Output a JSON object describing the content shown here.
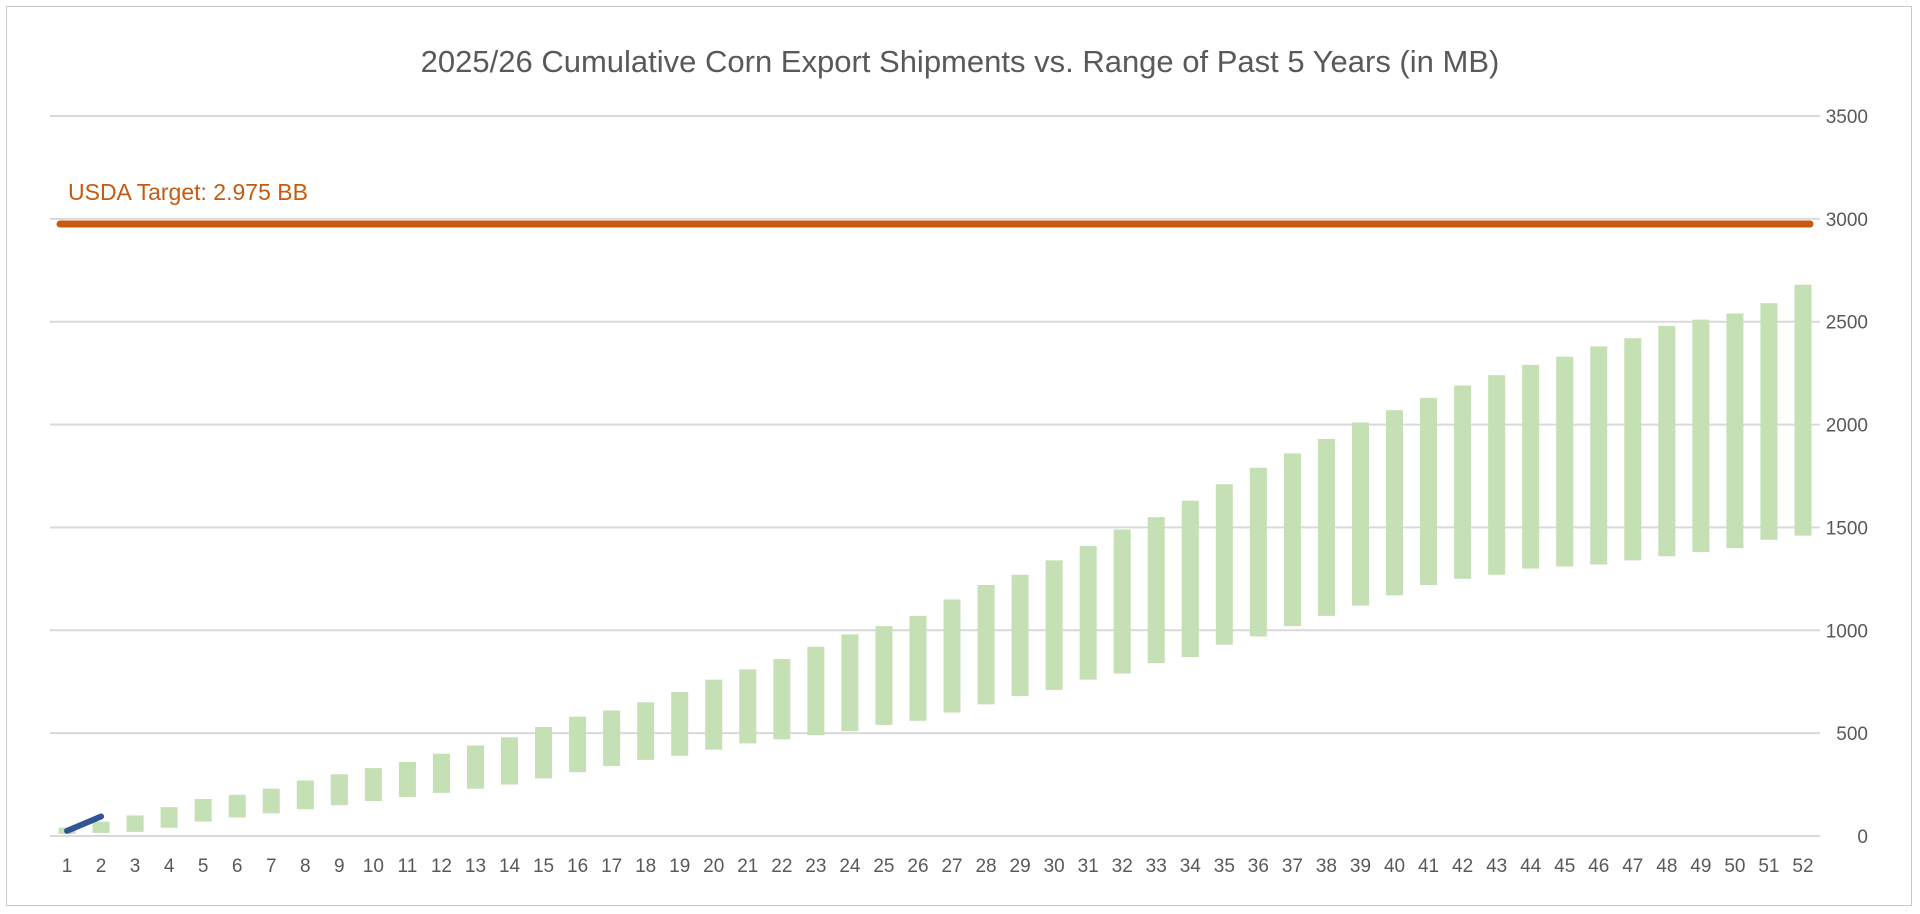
{
  "chart_data": {
    "type": "bar",
    "title": "2025/26 Cumulative Corn Export Shipments vs. Range of Past 5 Years (in MB)",
    "xlabel": "",
    "ylabel": "",
    "ylim": [
      0,
      3500
    ],
    "yticks": [
      0,
      500,
      1000,
      1500,
      2000,
      2500,
      3000,
      3500
    ],
    "y_axis_side": "right",
    "grid": true,
    "categories": [
      "1",
      "2",
      "3",
      "4",
      "5",
      "6",
      "7",
      "8",
      "9",
      "10",
      "11",
      "12",
      "13",
      "14",
      "15",
      "16",
      "17",
      "18",
      "19",
      "20",
      "21",
      "22",
      "23",
      "24",
      "25",
      "26",
      "27",
      "28",
      "29",
      "30",
      "31",
      "32",
      "33",
      "34",
      "35",
      "36",
      "37",
      "38",
      "39",
      "40",
      "41",
      "42",
      "43",
      "44",
      "45",
      "46",
      "47",
      "48",
      "49",
      "50",
      "51",
      "52"
    ],
    "range_low": [
      10,
      15,
      20,
      40,
      70,
      90,
      110,
      130,
      150,
      170,
      190,
      210,
      230,
      250,
      280,
      310,
      340,
      370,
      390,
      420,
      450,
      470,
      490,
      510,
      540,
      560,
      600,
      640,
      680,
      710,
      760,
      790,
      840,
      870,
      930,
      970,
      1020,
      1070,
      1120,
      1170,
      1220,
      1250,
      1270,
      1300,
      1310,
      1320,
      1340,
      1360,
      1380,
      1400,
      1440,
      1460
    ],
    "range_high": [
      40,
      70,
      100,
      140,
      180,
      200,
      230,
      270,
      300,
      330,
      360,
      400,
      440,
      480,
      530,
      580,
      610,
      650,
      700,
      760,
      810,
      860,
      920,
      980,
      1020,
      1070,
      1150,
      1220,
      1270,
      1340,
      1410,
      1490,
      1550,
      1630,
      1710,
      1790,
      1860,
      1930,
      2010,
      2070,
      2130,
      2190,
      2240,
      2290,
      2330,
      2380,
      2420,
      2480,
      2510,
      2540,
      2590,
      2680
    ],
    "range_color": "#c5e0b4",
    "current_line": {
      "x": [
        "1",
        "2"
      ],
      "values": [
        25,
        95
      ],
      "color": "#2f5597"
    },
    "target": {
      "value": 2975,
      "label": "USDA Target: 2.975 BB",
      "color": "#c55a11"
    },
    "gridline_color": "#d9d9d9"
  }
}
